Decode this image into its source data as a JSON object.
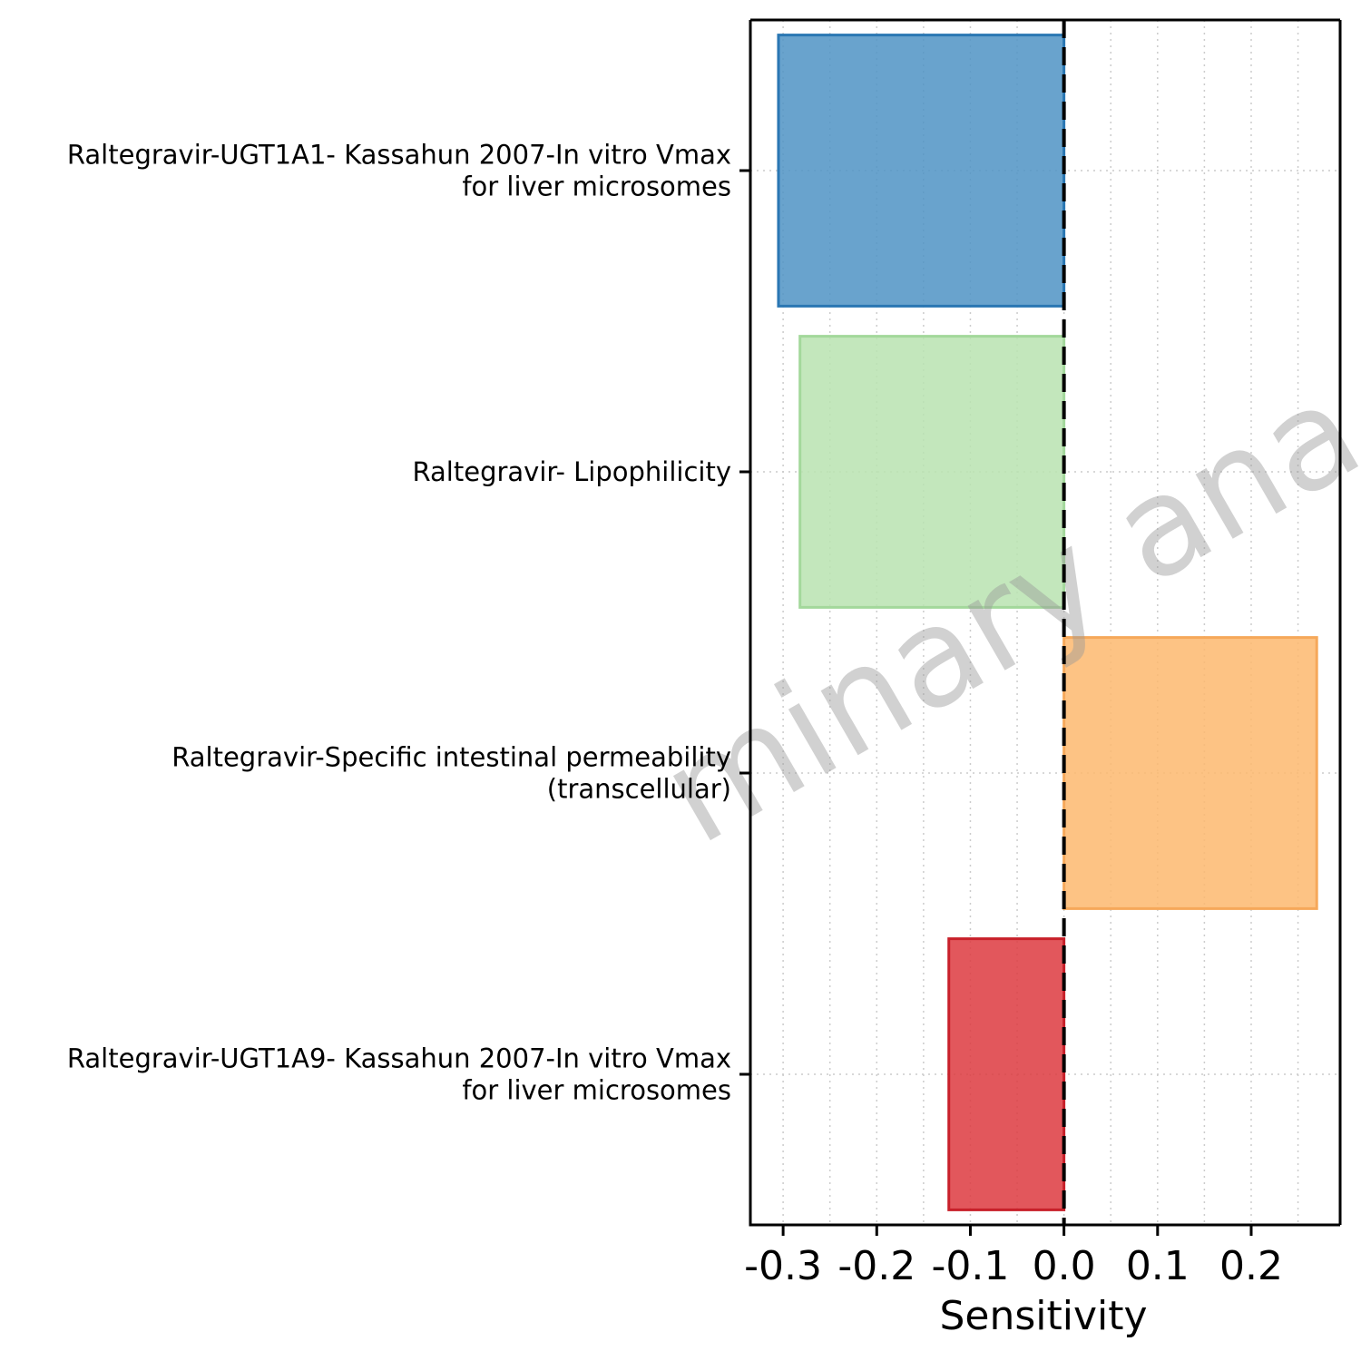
{
  "chart_data": {
    "type": "bar",
    "orientation": "horizontal",
    "categories": [
      [
        "Raltegravir-UGT1A1- Kassahun 2007-In vitro Vmax",
        "for liver microsomes"
      ],
      [
        "Raltegravir- Lipophilicity"
      ],
      [
        "Raltegravir-Specific intestinal permeability",
        "(transcellular)"
      ],
      [
        "Raltegravir-UGT1A9- Kassahun 2007-In vitro Vmax",
        "for liver microsomes"
      ]
    ],
    "values": [
      -0.305,
      -0.282,
      0.27,
      -0.123
    ],
    "fill_colors": [
      "#4f93c4",
      "#b8e3b0",
      "#fdb96f",
      "#dd3a3f"
    ],
    "stroke_colors": [
      "#2a77b3",
      "#a3d89b",
      "#f6a85a",
      "#c8202a"
    ],
    "fill_opacity": 0.85,
    "xlabel": "Sensitivity",
    "ylabel": "",
    "xlim": [
      -0.335,
      0.295
    ],
    "xticks": [
      -0.3,
      -0.2,
      -0.1,
      0.0,
      0.1,
      0.2
    ],
    "xtick_labels": [
      "-0.3",
      "-0.2",
      "-0.1",
      "0.0",
      "0.1",
      "0.2"
    ],
    "minor_grid": true,
    "reference_line": 0,
    "watermark": "minary ana",
    "legend": "none"
  }
}
